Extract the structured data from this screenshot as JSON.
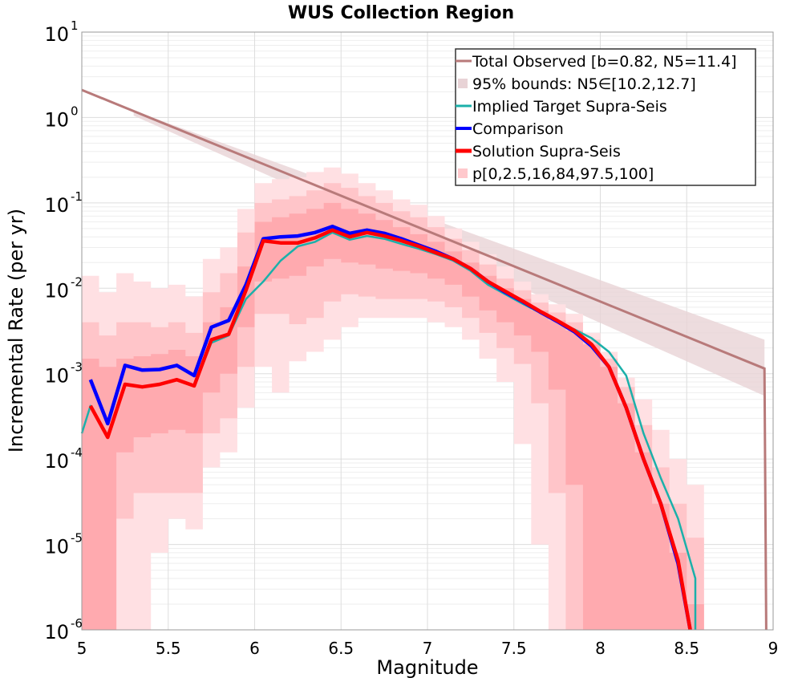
{
  "chart_data": {
    "type": "line",
    "title": "WUS Collection Region",
    "xlabel": "Magnitude",
    "ylabel": "Incremental Rate (per yr)",
    "xlim": [
      5,
      9
    ],
    "ylim": [
      1e-06,
      10
    ],
    "yscale": "log",
    "grid": true,
    "legend_position": "top-right",
    "x_ticks": [
      5,
      5.5,
      6,
      6.5,
      7,
      7.5,
      8,
      8.5,
      9
    ],
    "x_tick_labels": [
      "5",
      "5.5",
      "6",
      "6.5",
      "7",
      "7.5",
      "8",
      "8.5",
      "9"
    ],
    "y_ticks": [
      {
        "value": 1e-06,
        "base": "10",
        "exp": "-6"
      },
      {
        "value": 1e-05,
        "base": "10",
        "exp": "-5"
      },
      {
        "value": 0.0001,
        "base": "10",
        "exp": "-4"
      },
      {
        "value": 0.001,
        "base": "10",
        "exp": "-3"
      },
      {
        "value": 0.01,
        "base": "10",
        "exp": "-2"
      },
      {
        "value": 0.1,
        "base": "10",
        "exp": "-1"
      },
      {
        "value": 1,
        "base": "10",
        "exp": "0"
      },
      {
        "value": 10,
        "base": "10",
        "exp": "1"
      }
    ],
    "legend": [
      {
        "label": "Total Observed [b=0.82, N5=11.4]",
        "color": "#B87A7A",
        "kind": "line",
        "width": 3
      },
      {
        "label": "95% bounds: N5∈[10.2,12.7]",
        "color": "#E8D3D6",
        "kind": "fill"
      },
      {
        "label": "Implied Target Supra-Seis",
        "color": "#1BB0AA",
        "kind": "line",
        "width": 3
      },
      {
        "label": "Comparison",
        "color": "#0000FF",
        "kind": "line",
        "width": 4
      },
      {
        "label": "Solution Supra-Seis",
        "color": "#FF0000",
        "kind": "line",
        "width": 5
      },
      {
        "label": "p[0,2.5,16,84,97.5,100]",
        "color": "#FFC8CC",
        "kind": "fill"
      }
    ],
    "total_observed": {
      "x": [
        5.0,
        8.95,
        8.95,
        8.96
      ],
      "y": [
        2.1,
        0.00115,
        0.00115,
        1e-06
      ]
    },
    "observed_bounds": {
      "x": [
        5.3,
        8.95
      ],
      "upper": [
        1.2,
        0.0025
      ],
      "lower": [
        1.05,
        0.00055
      ]
    },
    "percentile_bands": {
      "x": [
        5.05,
        5.15,
        5.25,
        5.35,
        5.45,
        5.55,
        5.65,
        5.75,
        5.85,
        5.95,
        6.05,
        6.15,
        6.25,
        6.35,
        6.45,
        6.55,
        6.65,
        6.75,
        6.85,
        6.95,
        7.05,
        7.15,
        7.25,
        7.35,
        7.45,
        7.55,
        7.65,
        7.75,
        7.85,
        7.95,
        8.05,
        8.15,
        8.25,
        8.35,
        8.45,
        8.55
      ],
      "outer_upper": [
        0.014,
        0.009,
        0.015,
        0.012,
        0.01,
        0.011,
        0.008,
        0.022,
        0.03,
        0.085,
        0.17,
        0.19,
        0.2,
        0.23,
        0.26,
        0.22,
        0.17,
        0.14,
        0.11,
        0.095,
        0.07,
        0.05,
        0.035,
        0.025,
        0.018,
        0.012,
        0.0085,
        0.0065,
        0.005,
        0.003,
        0.0018,
        0.0009,
        0.0005,
        0.00022,
        0.0001,
        5e-05
      ],
      "inner_upper": [
        0.004,
        0.0028,
        0.004,
        0.004,
        0.0035,
        0.004,
        0.003,
        0.009,
        0.015,
        0.045,
        0.1,
        0.11,
        0.12,
        0.14,
        0.17,
        0.15,
        0.12,
        0.1,
        0.08,
        0.068,
        0.052,
        0.038,
        0.028,
        0.019,
        0.013,
        0.0095,
        0.0068,
        0.0052,
        0.004,
        0.0025,
        0.0015,
        0.0007,
        0.00025,
        8e-05,
        3e-05,
        1.2e-05
      ],
      "mid_upper": [
        0.0015,
        0.0012,
        0.0015,
        0.0016,
        0.0017,
        0.0019,
        0.0016,
        0.004,
        0.006,
        0.018,
        0.06,
        0.068,
        0.075,
        0.085,
        0.1,
        0.085,
        0.075,
        0.063,
        0.052,
        0.043,
        0.035,
        0.027,
        0.02,
        0.014,
        0.01,
        0.0075,
        0.0055,
        0.0042,
        0.0032,
        0.0022,
        0.0012,
        0.00045,
        0.00012,
        3e-05,
        8e-06,
        2e-06
      ],
      "mid_lower": [
        1e-06,
        1e-06,
        0.00012,
        0.00018,
        0.0002,
        0.00022,
        0.0002,
        0.0006,
        0.001,
        0.0035,
        0.012,
        0.013,
        0.014,
        0.018,
        0.022,
        0.02,
        0.019,
        0.017,
        0.016,
        0.015,
        0.013,
        0.011,
        0.008,
        0.0055,
        0.004,
        0.0028,
        0.0018,
        0.00065,
        5e-05,
        1e-06,
        1e-06,
        1e-06,
        1e-06,
        1e-06,
        1e-06,
        1e-06
      ],
      "inner_lower": [
        1e-06,
        1e-06,
        2e-05,
        4e-05,
        4e-05,
        4e-05,
        4e-05,
        0.0002,
        0.0003,
        0.0012,
        0.005,
        0.005,
        0.0038,
        0.0045,
        0.007,
        0.0085,
        0.008,
        0.0075,
        0.0075,
        0.0075,
        0.007,
        0.006,
        0.0045,
        0.003,
        0.002,
        0.0013,
        0.00045,
        4e-05,
        1e-06,
        1e-06,
        1e-06,
        1e-06,
        1e-06,
        1e-06,
        1e-06,
        1e-06
      ],
      "outer_lower": [
        1e-06,
        1e-06,
        1e-06,
        1e-06,
        8e-06,
        2e-05,
        1.5e-05,
        8e-05,
        0.00012,
        0.0004,
        0.0012,
        0.0006,
        0.0014,
        0.0018,
        0.0025,
        0.0035,
        0.0045,
        0.0045,
        0.0045,
        0.0045,
        0.004,
        0.0035,
        0.0025,
        0.0015,
        0.0008,
        0.00015,
        1e-05,
        1e-06,
        1e-06,
        1e-06,
        1e-06,
        1e-06,
        1e-06,
        1e-06,
        1e-06,
        1e-06
      ]
    },
    "series": [
      {
        "name": "Implied Target Supra-Seis",
        "color": "#1BB0AA",
        "x": [
          5.0,
          5.05,
          5.15,
          5.25,
          5.35,
          5.45,
          5.55,
          5.65,
          5.75,
          5.85,
          5.95,
          6.05,
          6.15,
          6.25,
          6.35,
          6.45,
          6.55,
          6.65,
          6.75,
          6.85,
          6.95,
          7.05,
          7.15,
          7.25,
          7.35,
          7.45,
          7.55,
          7.65,
          7.75,
          7.85,
          7.95,
          8.05,
          8.15,
          8.25,
          8.35,
          8.45,
          8.55,
          8.55
        ],
        "y": [
          0.0002,
          0.00042,
          0.00019,
          0.00075,
          0.0007,
          0.00075,
          0.00085,
          0.00072,
          0.0023,
          0.0028,
          0.0075,
          0.012,
          0.021,
          0.031,
          0.035,
          0.045,
          0.037,
          0.041,
          0.038,
          0.033,
          0.029,
          0.025,
          0.021,
          0.016,
          0.011,
          0.0085,
          0.0066,
          0.0052,
          0.0041,
          0.0033,
          0.0026,
          0.0018,
          0.00095,
          0.0002,
          6e-05,
          2e-05,
          4e-06,
          1e-06
        ]
      },
      {
        "name": "Comparison",
        "color": "#0000FF",
        "x": [
          5.05,
          5.15,
          5.25,
          5.35,
          5.45,
          5.55,
          5.65,
          5.75,
          5.85,
          5.95,
          6.05,
          6.15,
          6.25,
          6.35,
          6.45,
          6.55,
          6.65,
          6.75,
          6.85,
          6.95,
          7.05,
          7.15,
          7.25,
          7.35,
          7.45,
          7.55,
          7.65,
          7.75,
          7.85,
          7.95,
          8.05,
          8.15,
          8.25,
          8.35,
          8.45,
          8.52
        ],
        "y": [
          0.00085,
          0.00026,
          0.00125,
          0.0011,
          0.00112,
          0.00125,
          0.00095,
          0.0035,
          0.0042,
          0.011,
          0.038,
          0.04,
          0.041,
          0.045,
          0.053,
          0.044,
          0.048,
          0.044,
          0.038,
          0.032,
          0.027,
          0.022,
          0.017,
          0.012,
          0.009,
          0.007,
          0.0053,
          0.0041,
          0.0031,
          0.0021,
          0.0012,
          0.0004,
          0.0001,
          3e-05,
          6e-06,
          1e-06
        ]
      },
      {
        "name": "Solution Supra-Seis",
        "color": "#FF0000",
        "x": [
          5.05,
          5.15,
          5.25,
          5.35,
          5.45,
          5.55,
          5.65,
          5.75,
          5.85,
          5.95,
          6.05,
          6.15,
          6.25,
          6.35,
          6.45,
          6.55,
          6.65,
          6.75,
          6.85,
          6.95,
          7.05,
          7.15,
          7.25,
          7.35,
          7.45,
          7.55,
          7.65,
          7.75,
          7.85,
          7.95,
          8.05,
          8.15,
          8.25,
          8.35,
          8.45,
          8.52
        ],
        "y": [
          0.00042,
          0.00018,
          0.00075,
          0.0007,
          0.00075,
          0.00085,
          0.00072,
          0.0025,
          0.0029,
          0.0095,
          0.036,
          0.034,
          0.034,
          0.039,
          0.048,
          0.04,
          0.045,
          0.041,
          0.036,
          0.031,
          0.026,
          0.022,
          0.017,
          0.012,
          0.0092,
          0.0071,
          0.0054,
          0.0042,
          0.0032,
          0.0022,
          0.0012,
          0.0004,
          0.0001,
          3e-05,
          6.5e-06,
          1e-06
        ]
      }
    ]
  }
}
